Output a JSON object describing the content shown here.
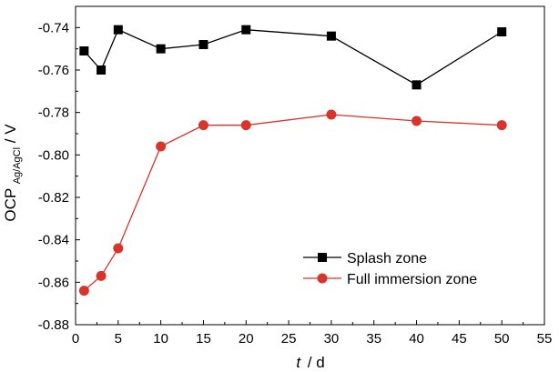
{
  "chart_data": {
    "type": "line",
    "xlabel": {
      "italic": "t",
      "rest": "/ d"
    },
    "ylabel": {
      "main": "OCP",
      "subscript": "Ag/AgCl",
      "rest": " / V"
    },
    "xlim": [
      0,
      55
    ],
    "ylim": [
      -0.88,
      -0.73
    ],
    "xticks": [
      0,
      5,
      10,
      15,
      20,
      25,
      30,
      35,
      40,
      45,
      50,
      55
    ],
    "xtick_labels": [
      "0",
      "5",
      "10",
      "15",
      "20",
      "25",
      "30",
      "35",
      "40",
      "45",
      "50",
      "55"
    ],
    "yticks": [
      -0.74,
      -0.76,
      -0.78,
      -0.8,
      -0.82,
      -0.84,
      -0.86,
      -0.88
    ],
    "ytick_labels": [
      "-0.74",
      "-0.76",
      "-0.78",
      "-0.80",
      "-0.82",
      "-0.84",
      "-0.86",
      "-0.88"
    ],
    "grid": false,
    "legend_position": "lower-right",
    "series": [
      {
        "name": "Splash zone",
        "marker": "square",
        "color": "#000000",
        "x": [
          1,
          3,
          5,
          10,
          15,
          20,
          30,
          40,
          50
        ],
        "y": [
          -0.751,
          -0.76,
          -0.741,
          -0.75,
          -0.748,
          -0.741,
          -0.744,
          -0.767,
          -0.742
        ]
      },
      {
        "name": "Full immersion zone",
        "marker": "circle",
        "color": "#d9342b",
        "x": [
          1,
          3,
          5,
          10,
          15,
          20,
          30,
          40,
          50
        ],
        "y": [
          -0.864,
          -0.857,
          -0.844,
          -0.796,
          -0.786,
          -0.786,
          -0.781,
          -0.784,
          -0.786
        ]
      }
    ]
  }
}
